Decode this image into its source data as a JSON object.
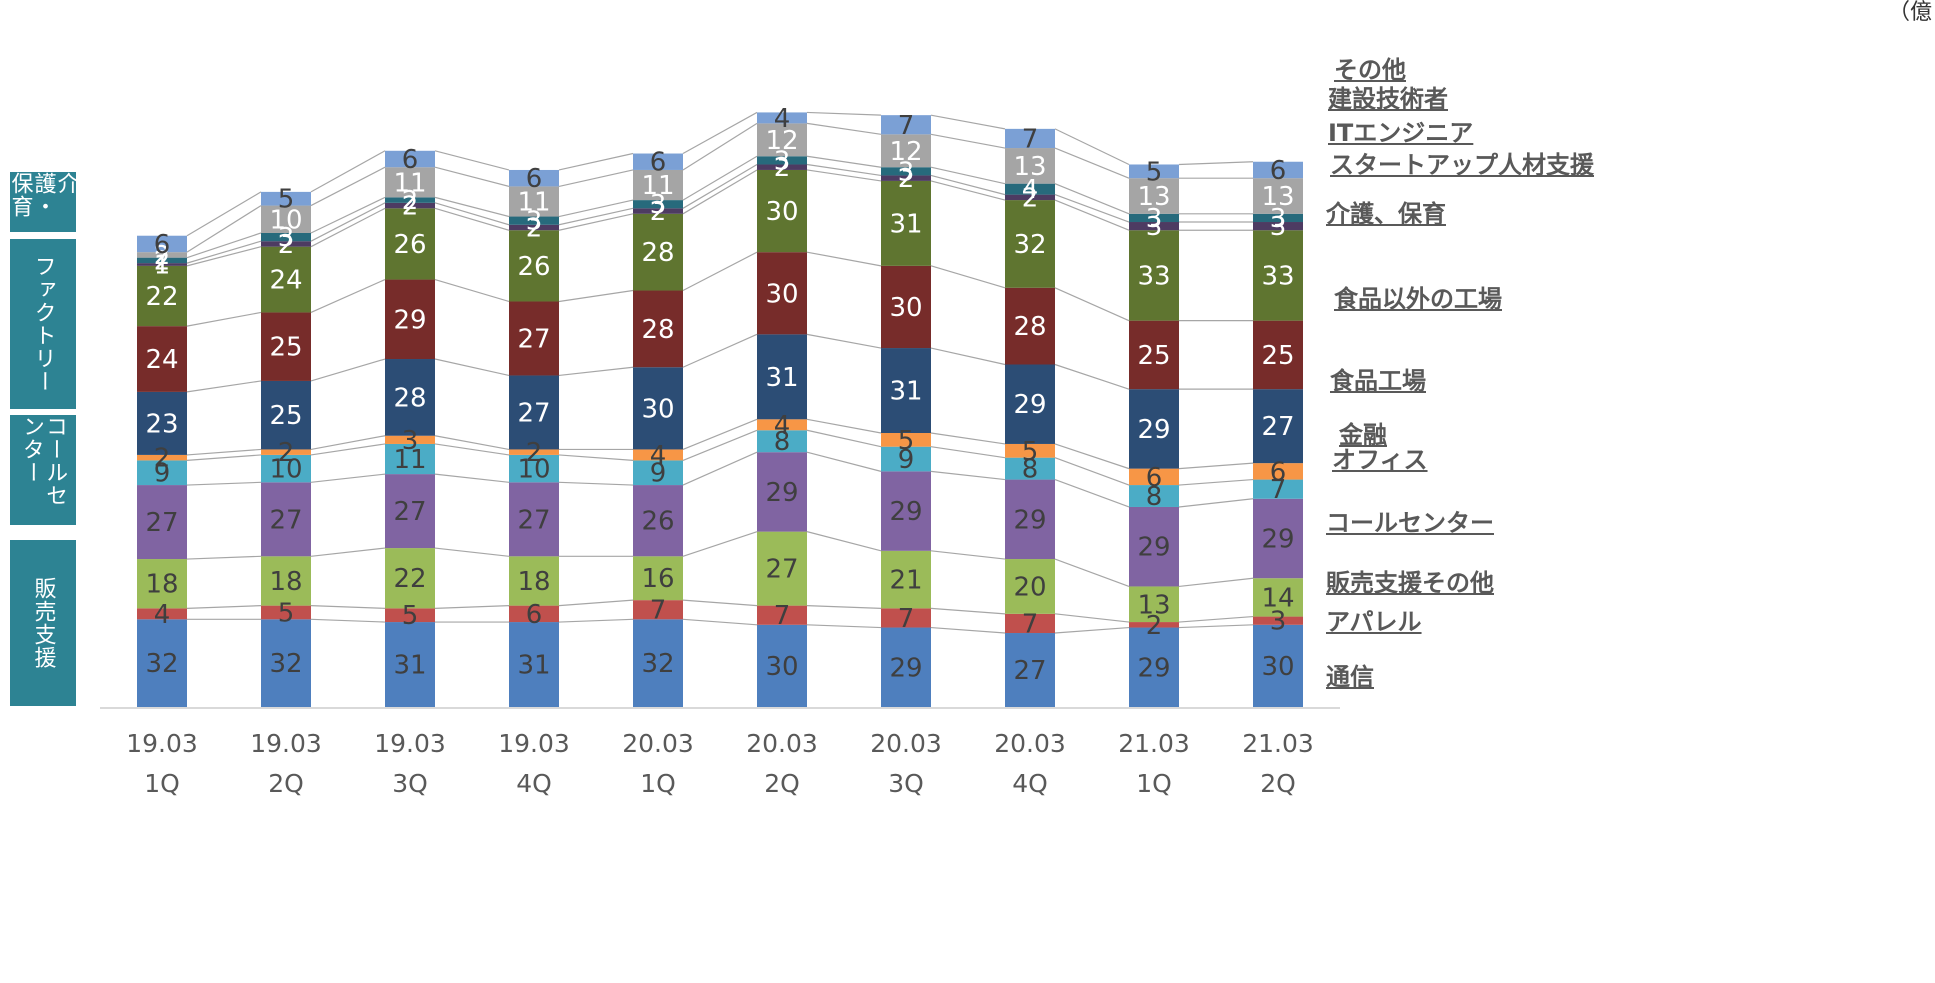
{
  "unit_label": "（億",
  "groups": [
    {
      "key": "kaigo",
      "label": "介護・保育"
    },
    {
      "key": "factory",
      "label": "ファクトリー"
    },
    {
      "key": "call",
      "label": "コールセンター"
    },
    {
      "key": "sales",
      "label": "販売支援"
    }
  ],
  "chart_data": {
    "type": "bar",
    "stacked": true,
    "categories": [
      "19.03\n1Q",
      "19.03\n2Q",
      "19.03\n3Q",
      "19.03\n4Q",
      "20.03\n1Q",
      "20.03\n2Q",
      "20.03\n3Q",
      "20.03\n4Q",
      "21.03\n1Q",
      "21.03\n2Q"
    ],
    "category_lines": [
      [
        "19.03",
        "1Q"
      ],
      [
        "19.03",
        "2Q"
      ],
      [
        "19.03",
        "3Q"
      ],
      [
        "19.03",
        "4Q"
      ],
      [
        "20.03",
        "1Q"
      ],
      [
        "20.03",
        "2Q"
      ],
      [
        "20.03",
        "3Q"
      ],
      [
        "20.03",
        "4Q"
      ],
      [
        "21.03",
        "1Q"
      ],
      [
        "21.03",
        "2Q"
      ]
    ],
    "series": [
      {
        "name": "通信",
        "color": "#4e7fbe",
        "label_color": "#3f3f3f",
        "values": [
          32,
          32,
          31,
          31,
          32,
          30,
          29,
          27,
          29,
          30
        ]
      },
      {
        "name": "アパレル",
        "color": "#c0504d",
        "label_color": "#3f3f3f",
        "values": [
          4,
          5,
          5,
          6,
          7,
          7,
          7,
          7,
          2,
          3
        ]
      },
      {
        "name": "販売支援その他",
        "color": "#9bbb59",
        "label_color": "#3f3f3f",
        "values": [
          18,
          18,
          22,
          18,
          16,
          27,
          21,
          20,
          13,
          14
        ]
      },
      {
        "name": "コールセンター",
        "color": "#8064a2",
        "label_color": "#3f3f3f",
        "values": [
          27,
          27,
          27,
          27,
          26,
          29,
          29,
          29,
          29,
          29
        ]
      },
      {
        "name": "オフィス",
        "color": "#4bacc6",
        "label_color": "#3f3f3f",
        "values": [
          9,
          10,
          11,
          10,
          9,
          8,
          9,
          8,
          8,
          7
        ]
      },
      {
        "name": "金融",
        "color": "#f79646",
        "label_color": "#3f3f3f",
        "values": [
          2,
          2,
          3,
          2,
          4,
          4,
          5,
          5,
          6,
          6
        ]
      },
      {
        "name": "食品工場",
        "color": "#2c4d75",
        "label_color": "#ffffff",
        "values": [
          23,
          25,
          28,
          27,
          30,
          31,
          31,
          29,
          29,
          27
        ]
      },
      {
        "name": "食品以外の工場",
        "color": "#772c2a",
        "label_color": "#ffffff",
        "values": [
          24,
          25,
          29,
          27,
          28,
          30,
          30,
          28,
          25,
          25
        ]
      },
      {
        "name": "介護、保育",
        "color": "#5f7530",
        "label_color": "#ffffff",
        "values": [
          22,
          24,
          26,
          26,
          28,
          30,
          31,
          32,
          33,
          33
        ]
      },
      {
        "name": "スタートアップ人材支援",
        "color": "#4d3b62",
        "label_color": "#ffffff",
        "values": [
          1,
          2,
          2,
          2,
          2,
          2,
          2,
          2,
          3,
          3
        ]
      },
      {
        "name": "ITエンジニア",
        "color": "#276a7c",
        "label_color": "#ffffff",
        "values": [
          2,
          3,
          2,
          3,
          3,
          3,
          3,
          4,
          3,
          3
        ]
      },
      {
        "name": "建設技術者",
        "color": "#a5a5a5",
        "label_color": "#ffffff",
        "values": [
          2,
          10,
          11,
          11,
          11,
          12,
          12,
          13,
          13,
          13
        ]
      },
      {
        "name": "その他",
        "color": "#7ba0d5",
        "label_color": "#3f3f3f",
        "values": [
          6,
          5,
          6,
          6,
          6,
          4,
          7,
          7,
          5,
          6
        ]
      }
    ],
    "ylim": [
      0,
      230
    ],
    "grid": false,
    "legend": "right, inline labels"
  }
}
